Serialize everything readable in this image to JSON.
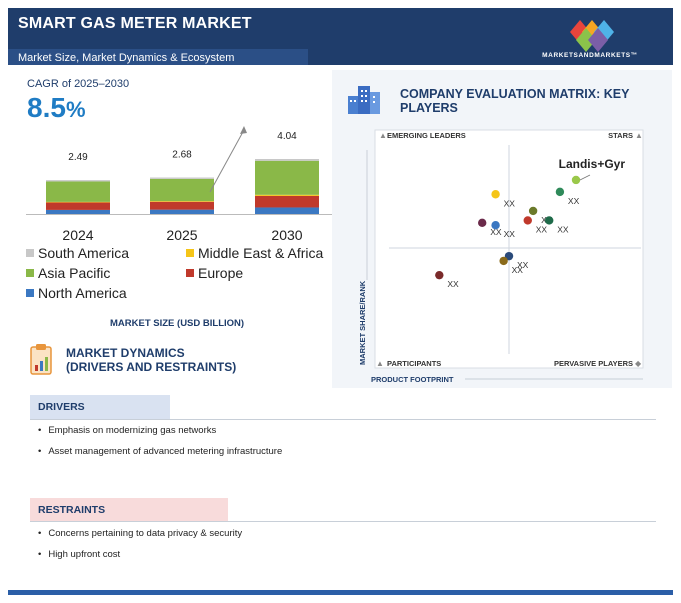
{
  "header": {
    "title": "SMART GAS METER MARKET",
    "subtitle": "Market Size, Market Dynamics & Ecosystem",
    "logo_text": "MARKETSANDMARKETS™"
  },
  "cagr": {
    "label": "CAGR of 2025–2030",
    "value": "8.5",
    "unit": "%"
  },
  "chart_data": [
    {
      "type": "bar",
      "stacked": true,
      "categories": [
        "2024",
        "2025",
        "2030"
      ],
      "totals": [
        "2.49",
        "2.68",
        "4.04"
      ],
      "series": [
        {
          "name": "North America",
          "color": "#3b78c2",
          "values": [
            0.3,
            0.32,
            0.48
          ]
        },
        {
          "name": "Europe",
          "color": "#c0392b",
          "values": [
            0.55,
            0.58,
            0.85
          ]
        },
        {
          "name": "Middle East & Africa",
          "color": "#f5c518",
          "values": [
            0.04,
            0.05,
            0.08
          ]
        },
        {
          "name": "Asia Pacific",
          "color": "#8ab848",
          "values": [
            1.5,
            1.63,
            2.5
          ]
        },
        {
          "name": "South America",
          "color": "#c8c8c8",
          "values": [
            0.1,
            0.1,
            0.13
          ]
        }
      ],
      "legend": [
        "South America",
        "Middle East & Africa",
        "Asia Pacific",
        "Europe",
        "North America"
      ],
      "xlabel": "MARKET SIZE (USD BILLION)",
      "ylim": [
        0,
        4.5
      ]
    },
    {
      "type": "scatter",
      "title": "COMPANY EVALUATION MATRIX: KEY PLAYERS",
      "xlabel": "PRODUCT FOOTPRINT",
      "ylabel": "MARKET SHARE/RANK",
      "quadrants": {
        "top_left": "EMERGING LEADERS",
        "top_right": "STARS",
        "bottom_left": "PARTICIPANTS",
        "bottom_right": "PERVASIVE PLAYERS"
      },
      "highlight_label": "Landis+Gyr",
      "points": [
        {
          "label": "Landis+Gyr",
          "x": 0.75,
          "y": 0.79,
          "color": "#9ac84a"
        },
        {
          "label": "XX",
          "x": 0.69,
          "y": 0.74,
          "color": "#2f8a5a"
        },
        {
          "label": "XX",
          "x": 0.45,
          "y": 0.73,
          "color": "#f5c518"
        },
        {
          "label": "XX",
          "x": 0.59,
          "y": 0.66,
          "color": "#6b7a2a"
        },
        {
          "label": "XX",
          "x": 0.65,
          "y": 0.62,
          "color": "#1f6b4a"
        },
        {
          "label": "XX",
          "x": 0.57,
          "y": 0.62,
          "color": "#c0392b"
        },
        {
          "label": "XX",
          "x": 0.4,
          "y": 0.61,
          "color": "#6b2a4a"
        },
        {
          "label": "XX",
          "x": 0.45,
          "y": 0.6,
          "color": "#3b78c2"
        },
        {
          "label": "XX",
          "x": 0.5,
          "y": 0.47,
          "color": "#2a4a7a"
        },
        {
          "label": "XX",
          "x": 0.48,
          "y": 0.45,
          "color": "#8a6a1a"
        },
        {
          "label": "XX",
          "x": 0.24,
          "y": 0.39,
          "color": "#7a2a2a"
        }
      ]
    }
  ],
  "dynamics": {
    "title_line1": "MARKET DYNAMICS",
    "title_line2": "(DRIVERS AND RESTRAINTS)",
    "drivers_label": "DRIVERS",
    "drivers": [
      "Emphasis on modernizing gas networks",
      "Asset management of advanced metering infrastructure"
    ],
    "restraints_label": "RESTRAINTS",
    "restraints": [
      "Concerns pertaining to data privacy & security",
      "High upfront cost"
    ]
  }
}
